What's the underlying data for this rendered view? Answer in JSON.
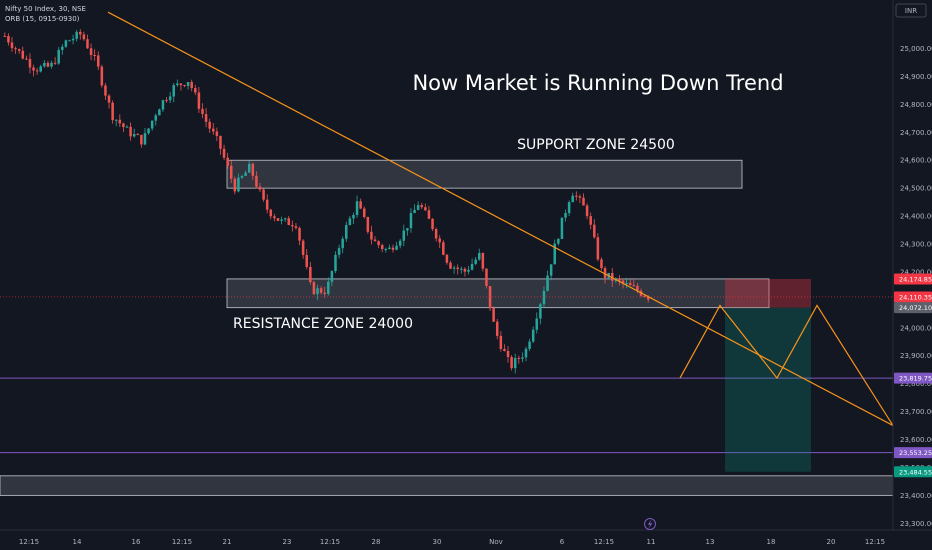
{
  "header": {
    "symbol_line": "Nifty 50 Index, 30, NSE",
    "indicator_line": "ORB (15, 0915-0930)"
  },
  "currency_badge": "INR",
  "chart_data": {
    "type": "candlestick",
    "title": "",
    "ylim": [
      23270,
      25150
    ],
    "y_ticks": [
      25000,
      24900,
      24800,
      24700,
      24600,
      24500,
      24400,
      24300,
      24200,
      24100,
      24000,
      23900,
      23800,
      23700,
      23600,
      23500,
      23400,
      23300
    ],
    "x_ticks": [
      "12:15",
      "14",
      "16",
      "12:15",
      "21",
      "23",
      "12:15",
      "28",
      "30",
      "Nov",
      "6",
      "12:15",
      "11",
      "13",
      "18",
      "20",
      "12:15"
    ],
    "price_path": [
      [
        24990,
        25100
      ],
      [
        25035,
        24930
      ],
      [
        24950,
        24905
      ],
      [
        24945,
        24925
      ],
      [
        25005,
        25045
      ],
      [
        25120,
        24985
      ],
      [
        25080,
        24810
      ],
      [
        24820,
        24705
      ],
      [
        24720,
        24690
      ],
      [
        24720,
        24615
      ],
      [
        24800,
        24775
      ],
      [
        24850,
        24870
      ],
      [
        24935,
        24840
      ],
      [
        24790,
        24715
      ],
      [
        24670,
        24640
      ],
      [
        24555,
        24450
      ],
      [
        24600,
        24550
      ],
      [
        24445,
        24420
      ],
      [
        24400,
        24360
      ],
      [
        24370,
        24380
      ],
      [
        24160,
        24110
      ],
      [
        24160,
        24105
      ],
      [
        24250,
        24400
      ],
      [
        24450,
        24440
      ],
      [
        24450,
        24175
      ],
      [
        24250,
        24300
      ],
      [
        24300,
        24375
      ],
      [
        24420,
        24475
      ],
      [
        24450,
        24260
      ],
      [
        24250,
        24205
      ],
      [
        24220,
        24180
      ],
      [
        24220,
        24300
      ],
      [
        24080,
        23900
      ],
      [
        23850,
        23870
      ],
      [
        23900,
        23935
      ],
      [
        24000,
        24200
      ],
      [
        24240,
        24380
      ],
      [
        24460,
        24525
      ],
      [
        24530,
        24300
      ],
      [
        24210,
        24175
      ],
      [
        24175,
        24155
      ],
      [
        24160,
        24125
      ],
      [
        24115,
        24110
      ]
    ],
    "trendline": {
      "from": [
        "16",
        25130
      ],
      "to": [
        "after 12:15",
        23650
      ],
      "color": "#f7931a"
    },
    "zones": [
      {
        "label": "SUPPORT ZONE 24500",
        "top": 24600,
        "bottom": 24500
      },
      {
        "label": "RESISTANCE ZONE 24000",
        "top": 24175,
        "bottom": 24072
      },
      {
        "label": "",
        "top": 23470,
        "bottom": 23400
      }
    ],
    "horizontal_lines": [
      {
        "value": 23819.75,
        "color": "#7e57c2"
      },
      {
        "value": 23553.25,
        "color": "#7e57c2"
      }
    ],
    "projection_path_y": [
      23820,
      24080,
      23820,
      24080,
      23650
    ],
    "position": {
      "entry": 24072.1,
      "stop": 24174.85,
      "target": 23484.55
    },
    "price_tags": [
      {
        "label": "24,174.85",
        "value": 24174.85,
        "color": "#f23645"
      },
      {
        "label": "24,110.35",
        "value": 24110.35,
        "color": "#f23645"
      },
      {
        "label": "24,072.10",
        "value": 24072.1,
        "color": "#5d606b"
      },
      {
        "label": "23,819.75",
        "value": 23819.75,
        "color": "#7e57c2"
      },
      {
        "label": "23,553.25",
        "value": 23553.25,
        "color": "#7e57c2"
      },
      {
        "label": "23,484.55",
        "value": 23484.55,
        "color": "#089981"
      }
    ]
  },
  "annotations": {
    "headline": "Now Market is Running Down Trend",
    "support": "SUPPORT ZONE 24500",
    "resistance": "RESISTANCE ZONE 24000"
  },
  "colors": {
    "background": "#131722",
    "bull": "#26a69a",
    "bear": "#ef5350",
    "trend": "#f7931a",
    "level": "#7e57c2"
  },
  "lightning_icon": "lightning-icon"
}
